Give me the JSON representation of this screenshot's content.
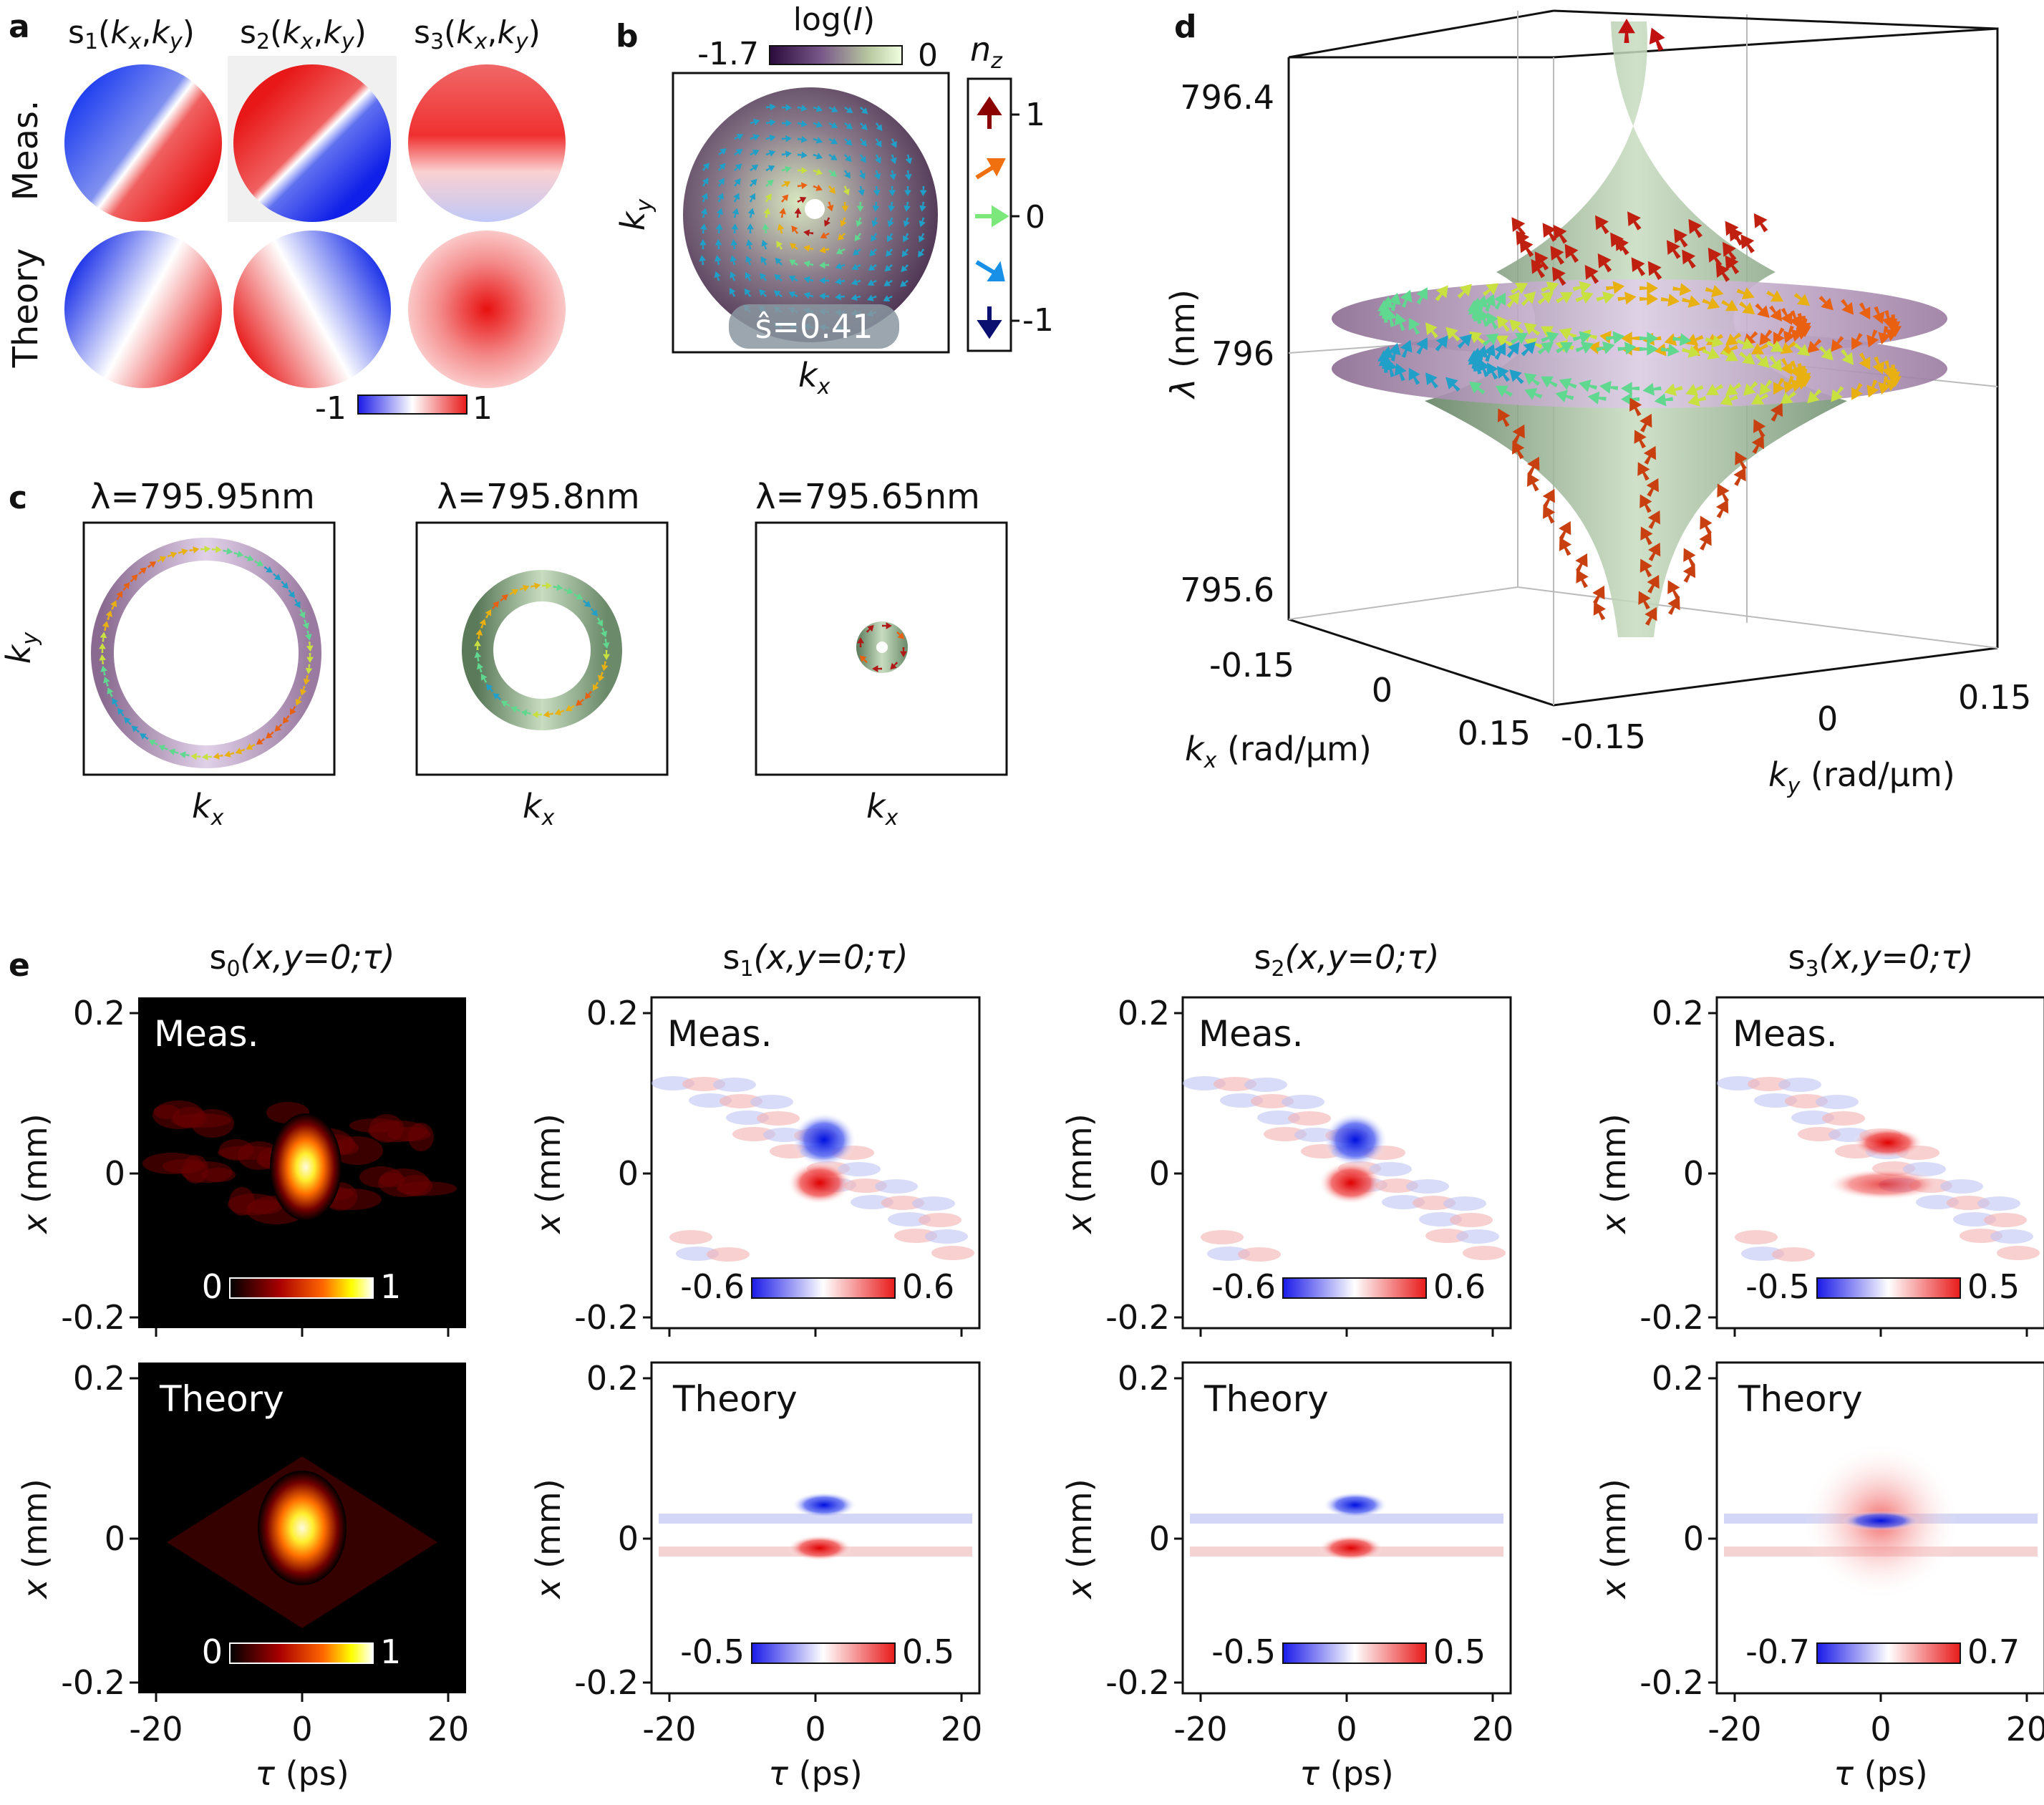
{
  "panel_letters": {
    "a": "a",
    "b": "b",
    "c": "c",
    "d": "d",
    "e": "e"
  },
  "panel_a": {
    "col_titles": [
      {
        "s": "s",
        "sub": "1",
        "args": "(k",
        "x": "x",
        ",": ",",
        "k": "k",
        "y": "y",
        ")": ")"
      },
      {
        "s": "s",
        "sub": "2",
        "args": "(k",
        "x": "x",
        ",": ",",
        "k": "k",
        "y": "y",
        ")": ")"
      },
      {
        "s": "s",
        "sub": "3",
        "args": "(k",
        "x": "x",
        ",": ",",
        "k": "k",
        "y": "y",
        ")": ")"
      }
    ],
    "row_labels": [
      "Meas.",
      "Theory"
    ],
    "colorbar": {
      "min": "-1",
      "max": "1"
    }
  },
  "panel_b": {
    "colorbar_title": "log(I)",
    "colorbar_min": "-1.7",
    "colorbar_max": "0",
    "axis_x": "k",
    "axis_x_sub": "x",
    "axis_y": "k",
    "axis_y_sub": "y",
    "skyrmion_number": "ŝ=0.41",
    "nz_title": "n",
    "nz_sub": "z",
    "nz_ticks": [
      "1",
      "0",
      "-1"
    ]
  },
  "panel_c": {
    "titles": [
      "λ=795.95nm",
      "λ=795.8nm",
      "λ=795.65nm"
    ],
    "axis_x": "k",
    "axis_x_sub": "x",
    "axis_y": "k",
    "axis_y_sub": "y"
  },
  "panel_d": {
    "z_ticks": [
      "796.4",
      "796",
      "795.6"
    ],
    "z_label": "λ (nm)",
    "kx_ticks": [
      "-0.15",
      "0",
      "0.15"
    ],
    "kx_label": "k",
    "kx_label_sub": "x",
    "kx_unit": " (rad/μm)",
    "ky_ticks": [
      "-0.15",
      "0",
      "0.15"
    ],
    "ky_label": "k",
    "ky_label_sub": "y",
    "ky_unit": " (rad/μm)"
  },
  "panel_e": {
    "col_titles": [
      {
        "s": "s",
        "sub": "0",
        "args": "(x,y=0;τ)"
      },
      {
        "s": "s",
        "sub": "1",
        "args": "(x,y=0;τ)"
      },
      {
        "s": "s",
        "sub": "2",
        "args": "(x,y=0;τ)"
      },
      {
        "s": "s",
        "sub": "3",
        "args": "(x,y=0;τ)"
      }
    ],
    "row_labels": [
      "Meas.",
      "Theory"
    ],
    "y_ticks": [
      "0.2",
      "0",
      "-0.2"
    ],
    "y_label": "x (mm)",
    "x_ticks": [
      "-20",
      "0",
      "20"
    ],
    "x_label": "τ (ps)",
    "colorbars": [
      [
        "0",
        "1"
      ],
      [
        "-0.6",
        "0.6"
      ],
      [
        "-0.6",
        "0.6"
      ],
      [
        "-0.5",
        "0.5"
      ],
      [
        "0",
        "1"
      ],
      [
        "-0.5",
        "0.5"
      ],
      [
        "-0.5",
        "0.5"
      ],
      [
        "-0.7",
        "0.7"
      ]
    ]
  },
  "colors": {
    "red": "#e8262a",
    "blue": "#2a33e8",
    "dark_red": "#8b0000",
    "navy": "#0a1070",
    "orange": "#f07010",
    "green": "#7ce87c",
    "cyan": "#1890e8"
  }
}
